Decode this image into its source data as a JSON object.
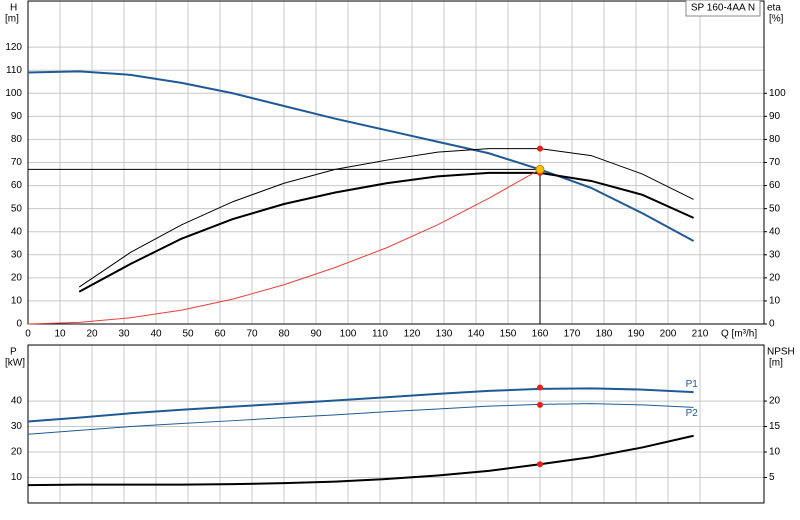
{
  "chart_data": [
    {
      "type": "line",
      "title": "SP 160-4AA N",
      "y_label": "H",
      "y_unit": "[m]",
      "y2_label": "eta",
      "y2_unit": "[%]",
      "x_label": "Q [m³/h]",
      "xlim": [
        0,
        230
      ],
      "xticks": [
        0,
        10,
        20,
        30,
        40,
        50,
        60,
        70,
        80,
        90,
        100,
        110,
        120,
        130,
        140,
        150,
        160,
        170,
        180,
        190,
        200,
        210
      ],
      "ylim": [
        0,
        140
      ],
      "yticks": [
        0,
        10,
        20,
        30,
        40,
        50,
        60,
        70,
        80,
        90,
        100,
        110,
        120
      ],
      "y2lim": [
        0,
        140
      ],
      "y2ticks": [
        0,
        10,
        20,
        30,
        40,
        50,
        60,
        70,
        80,
        90,
        100
      ],
      "grid": true,
      "show_xtick_labels": true,
      "series": [
        {
          "color": "#1f5a96",
          "width": 2,
          "x": [
            0,
            16,
            32,
            48,
            64,
            80,
            96,
            112,
            128,
            144,
            160,
            176,
            192,
            208
          ],
          "values": [
            109,
            109.5,
            108,
            104.5,
            100,
            94.5,
            89,
            84,
            79,
            74,
            67,
            59,
            48,
            36
          ]
        },
        {
          "color": "#000000",
          "width": 1,
          "axis": "y2",
          "x": [
            16,
            32,
            48,
            64,
            80,
            96,
            112,
            128,
            144,
            160,
            176,
            192,
            208
          ],
          "values": [
            16,
            31,
            43,
            53,
            61,
            67,
            71,
            74.5,
            76,
            76,
            73,
            65,
            54
          ]
        },
        {
          "color": "#000000",
          "width": 2,
          "axis": "y2",
          "x": [
            16,
            32,
            48,
            64,
            80,
            96,
            112,
            128,
            144,
            160,
            176,
            192,
            208
          ],
          "values": [
            14,
            26,
            37,
            45.5,
            52,
            57,
            61,
            64,
            65.5,
            65.5,
            62,
            56,
            46
          ]
        },
        {
          "color": "#e8403a",
          "width": 1,
          "x": [
            0,
            16,
            32,
            48,
            64,
            80,
            96,
            112,
            128,
            144,
            160
          ],
          "values": [
            0,
            0.7,
            2.7,
            6,
            10.8,
            17,
            24.5,
            33,
            43,
            54.5,
            67
          ]
        }
      ],
      "duty_point": {
        "x": 160,
        "y": 67,
        "color": "#f5c400"
      },
      "points": [
        {
          "x": 160,
          "y": 76,
          "axis": "y2",
          "color": "#e8201a"
        },
        {
          "x": 160,
          "y": 65.5,
          "axis": "y2",
          "color": "#e8201a"
        }
      ]
    },
    {
      "type": "line",
      "y_label": "P",
      "y_unit": "[kW]",
      "y2_label": "NPSH",
      "y2_unit": "[m]",
      "xlim": [
        0,
        230
      ],
      "xticks": [
        0,
        10,
        20,
        30,
        40,
        50,
        60,
        70,
        80,
        90,
        100,
        110,
        120,
        130,
        140,
        150,
        160,
        170,
        180,
        190,
        200,
        210
      ],
      "ylim": [
        0,
        62
      ],
      "yticks": [
        10,
        20,
        30,
        40
      ],
      "y2lim": [
        0,
        31
      ],
      "y2ticks": [
        5,
        10,
        15,
        20
      ],
      "grid": true,
      "show_xtick_labels": false,
      "series": [
        {
          "name": "P1",
          "color": "#1f5a96",
          "width": 2,
          "x": [
            0,
            16,
            32,
            48,
            64,
            80,
            96,
            112,
            128,
            144,
            160,
            176,
            192,
            208
          ],
          "values": [
            32,
            33.5,
            35.2,
            36.6,
            37.8,
            39,
            40.2,
            41.5,
            42.8,
            44,
            44.8,
            45,
            44.5,
            43.5
          ]
        },
        {
          "name": "P2",
          "color": "#1f5a96",
          "width": 1,
          "x": [
            0,
            16,
            32,
            48,
            64,
            80,
            96,
            112,
            128,
            144,
            160,
            176,
            192,
            208
          ],
          "values": [
            27,
            28.5,
            30,
            31.2,
            32.3,
            33.5,
            34.6,
            35.8,
            36.9,
            38,
            38.7,
            39,
            38.5,
            37.5
          ]
        },
        {
          "color": "#000000",
          "width": 2,
          "axis": "y2",
          "x": [
            0,
            16,
            32,
            48,
            64,
            80,
            96,
            112,
            128,
            144,
            160,
            176,
            192,
            208
          ],
          "values": [
            3.5,
            3.6,
            3.6,
            3.6,
            3.7,
            3.9,
            4.2,
            4.7,
            5.4,
            6.3,
            7.6,
            9,
            10.9,
            13.2
          ]
        }
      ],
      "points": [
        {
          "x": 160,
          "y": 45.3,
          "color": "#e8201a"
        },
        {
          "x": 160,
          "y": 38.5,
          "color": "#e8201a"
        },
        {
          "x": 160,
          "y": 7.6,
          "axis": "y2",
          "color": "#e8201a"
        }
      ]
    }
  ]
}
